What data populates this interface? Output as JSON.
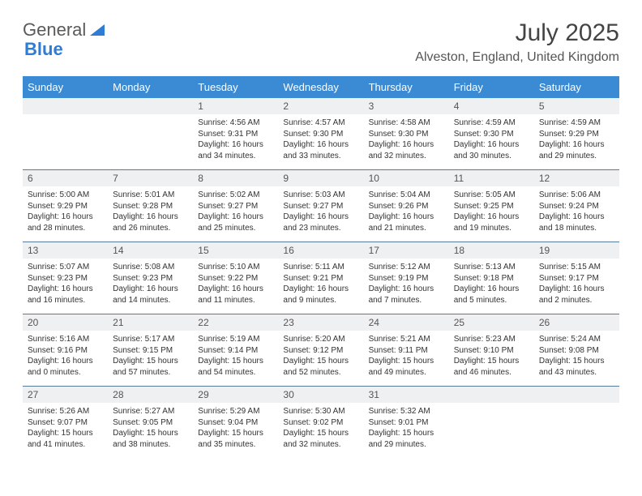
{
  "logo": {
    "text1": "General",
    "text2": "Blue"
  },
  "title": "July 2025",
  "location": "Alveston, England, United Kingdom",
  "colors": {
    "header_bg": "#3a8ad4",
    "header_text": "#ffffff",
    "numrow_bg": "#eef0f2",
    "numrow_border": "#5a7a9a",
    "body_text": "#333333",
    "logo_gray": "#5a5a5a",
    "logo_blue": "#2e7cd6",
    "background": "#ffffff"
  },
  "day_names": [
    "Sunday",
    "Monday",
    "Tuesday",
    "Wednesday",
    "Thursday",
    "Friday",
    "Saturday"
  ],
  "weeks": [
    {
      "nums": [
        "",
        "",
        "1",
        "2",
        "3",
        "4",
        "5"
      ],
      "cells": [
        null,
        null,
        {
          "sunrise": "Sunrise: 4:56 AM",
          "sunset": "Sunset: 9:31 PM",
          "daylight": "Daylight: 16 hours and 34 minutes."
        },
        {
          "sunrise": "Sunrise: 4:57 AM",
          "sunset": "Sunset: 9:30 PM",
          "daylight": "Daylight: 16 hours and 33 minutes."
        },
        {
          "sunrise": "Sunrise: 4:58 AM",
          "sunset": "Sunset: 9:30 PM",
          "daylight": "Daylight: 16 hours and 32 minutes."
        },
        {
          "sunrise": "Sunrise: 4:59 AM",
          "sunset": "Sunset: 9:30 PM",
          "daylight": "Daylight: 16 hours and 30 minutes."
        },
        {
          "sunrise": "Sunrise: 4:59 AM",
          "sunset": "Sunset: 9:29 PM",
          "daylight": "Daylight: 16 hours and 29 minutes."
        }
      ]
    },
    {
      "nums": [
        "6",
        "7",
        "8",
        "9",
        "10",
        "11",
        "12"
      ],
      "cells": [
        {
          "sunrise": "Sunrise: 5:00 AM",
          "sunset": "Sunset: 9:29 PM",
          "daylight": "Daylight: 16 hours and 28 minutes."
        },
        {
          "sunrise": "Sunrise: 5:01 AM",
          "sunset": "Sunset: 9:28 PM",
          "daylight": "Daylight: 16 hours and 26 minutes."
        },
        {
          "sunrise": "Sunrise: 5:02 AM",
          "sunset": "Sunset: 9:27 PM",
          "daylight": "Daylight: 16 hours and 25 minutes."
        },
        {
          "sunrise": "Sunrise: 5:03 AM",
          "sunset": "Sunset: 9:27 PM",
          "daylight": "Daylight: 16 hours and 23 minutes."
        },
        {
          "sunrise": "Sunrise: 5:04 AM",
          "sunset": "Sunset: 9:26 PM",
          "daylight": "Daylight: 16 hours and 21 minutes."
        },
        {
          "sunrise": "Sunrise: 5:05 AM",
          "sunset": "Sunset: 9:25 PM",
          "daylight": "Daylight: 16 hours and 19 minutes."
        },
        {
          "sunrise": "Sunrise: 5:06 AM",
          "sunset": "Sunset: 9:24 PM",
          "daylight": "Daylight: 16 hours and 18 minutes."
        }
      ]
    },
    {
      "nums": [
        "13",
        "14",
        "15",
        "16",
        "17",
        "18",
        "19"
      ],
      "cells": [
        {
          "sunrise": "Sunrise: 5:07 AM",
          "sunset": "Sunset: 9:23 PM",
          "daylight": "Daylight: 16 hours and 16 minutes."
        },
        {
          "sunrise": "Sunrise: 5:08 AM",
          "sunset": "Sunset: 9:23 PM",
          "daylight": "Daylight: 16 hours and 14 minutes."
        },
        {
          "sunrise": "Sunrise: 5:10 AM",
          "sunset": "Sunset: 9:22 PM",
          "daylight": "Daylight: 16 hours and 11 minutes."
        },
        {
          "sunrise": "Sunrise: 5:11 AM",
          "sunset": "Sunset: 9:21 PM",
          "daylight": "Daylight: 16 hours and 9 minutes."
        },
        {
          "sunrise": "Sunrise: 5:12 AM",
          "sunset": "Sunset: 9:19 PM",
          "daylight": "Daylight: 16 hours and 7 minutes."
        },
        {
          "sunrise": "Sunrise: 5:13 AM",
          "sunset": "Sunset: 9:18 PM",
          "daylight": "Daylight: 16 hours and 5 minutes."
        },
        {
          "sunrise": "Sunrise: 5:15 AM",
          "sunset": "Sunset: 9:17 PM",
          "daylight": "Daylight: 16 hours and 2 minutes."
        }
      ]
    },
    {
      "nums": [
        "20",
        "21",
        "22",
        "23",
        "24",
        "25",
        "26"
      ],
      "cells": [
        {
          "sunrise": "Sunrise: 5:16 AM",
          "sunset": "Sunset: 9:16 PM",
          "daylight": "Daylight: 16 hours and 0 minutes."
        },
        {
          "sunrise": "Sunrise: 5:17 AM",
          "sunset": "Sunset: 9:15 PM",
          "daylight": "Daylight: 15 hours and 57 minutes."
        },
        {
          "sunrise": "Sunrise: 5:19 AM",
          "sunset": "Sunset: 9:14 PM",
          "daylight": "Daylight: 15 hours and 54 minutes."
        },
        {
          "sunrise": "Sunrise: 5:20 AM",
          "sunset": "Sunset: 9:12 PM",
          "daylight": "Daylight: 15 hours and 52 minutes."
        },
        {
          "sunrise": "Sunrise: 5:21 AM",
          "sunset": "Sunset: 9:11 PM",
          "daylight": "Daylight: 15 hours and 49 minutes."
        },
        {
          "sunrise": "Sunrise: 5:23 AM",
          "sunset": "Sunset: 9:10 PM",
          "daylight": "Daylight: 15 hours and 46 minutes."
        },
        {
          "sunrise": "Sunrise: 5:24 AM",
          "sunset": "Sunset: 9:08 PM",
          "daylight": "Daylight: 15 hours and 43 minutes."
        }
      ]
    },
    {
      "nums": [
        "27",
        "28",
        "29",
        "30",
        "31",
        "",
        ""
      ],
      "cells": [
        {
          "sunrise": "Sunrise: 5:26 AM",
          "sunset": "Sunset: 9:07 PM",
          "daylight": "Daylight: 15 hours and 41 minutes."
        },
        {
          "sunrise": "Sunrise: 5:27 AM",
          "sunset": "Sunset: 9:05 PM",
          "daylight": "Daylight: 15 hours and 38 minutes."
        },
        {
          "sunrise": "Sunrise: 5:29 AM",
          "sunset": "Sunset: 9:04 PM",
          "daylight": "Daylight: 15 hours and 35 minutes."
        },
        {
          "sunrise": "Sunrise: 5:30 AM",
          "sunset": "Sunset: 9:02 PM",
          "daylight": "Daylight: 15 hours and 32 minutes."
        },
        {
          "sunrise": "Sunrise: 5:32 AM",
          "sunset": "Sunset: 9:01 PM",
          "daylight": "Daylight: 15 hours and 29 minutes."
        },
        null,
        null
      ]
    }
  ]
}
